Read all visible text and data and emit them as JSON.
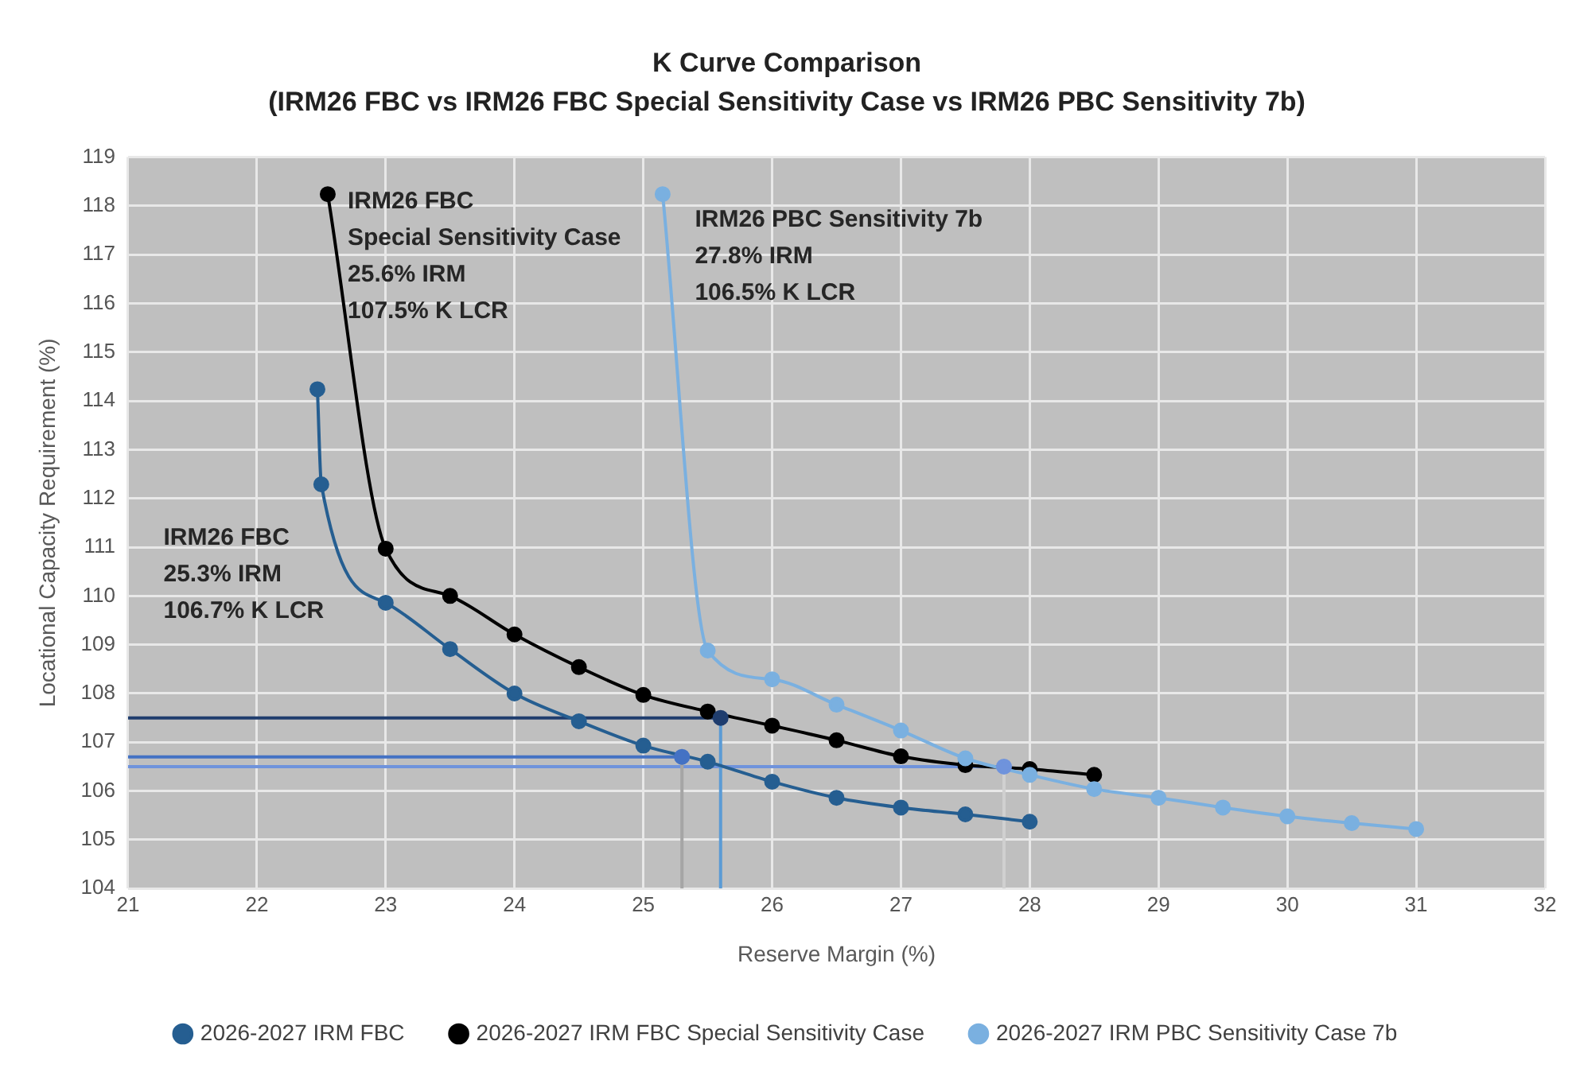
{
  "chart_data": {
    "type": "line",
    "title": "K Curve Comparison",
    "subtitle": "(IRM26 FBC vs IRM26 FBC Special Sensitivity Case vs IRM26 PBC Sensitivity 7b)",
    "xlabel": "Reserve Margin (%)",
    "ylabel": "Locational Capacity Requirement (%)",
    "xlim": [
      21,
      32
    ],
    "xticks": [
      21,
      22,
      23,
      24,
      25,
      26,
      27,
      28,
      29,
      30,
      31,
      32
    ],
    "ylim": [
      104,
      119
    ],
    "yticks": [
      104,
      105,
      106,
      107,
      108,
      109,
      110,
      111,
      112,
      113,
      114,
      115,
      116,
      117,
      118,
      119
    ],
    "grid": true,
    "legend": "bottom",
    "marker": "circle",
    "line_style": "solid",
    "series": [
      {
        "marker": "none",
        "color": "#1f3d6e",
        "x": [
          21,
          25.6
        ],
        "values": [
          107.5,
          107.5
        ]
      },
      {
        "marker": "none",
        "color": "#4472c4",
        "x": [
          21,
          25.3
        ],
        "values": [
          106.7,
          106.7
        ]
      },
      {
        "marker": "none",
        "color": "#6f93dc",
        "x": [
          21,
          27.8
        ],
        "values": [
          106.5,
          106.5
        ]
      },
      {
        "marker": "none",
        "color": "#5b9bd5",
        "x": [
          25.6,
          25.6
        ],
        "values": [
          104,
          107.5
        ]
      },
      {
        "marker": "none",
        "color": "#a5a5a5",
        "x": [
          25.3,
          25.3
        ],
        "values": [
          104,
          106.7
        ]
      },
      {
        "marker": "none",
        "color": "#d0d0d0",
        "x": [
          27.8,
          27.8
        ],
        "values": [
          104,
          106.5
        ]
      },
      {
        "name": "2026-2027 IRM FBC",
        "color": "#255e91",
        "x": [
          22.47,
          22.5,
          23,
          23.5,
          24,
          24.5,
          25,
          25.5,
          26,
          26.5,
          27,
          27.5,
          28
        ],
        "values": [
          114.24,
          112.29,
          109.86,
          108.91,
          108.0,
          107.43,
          106.93,
          106.6,
          106.19,
          105.86,
          105.66,
          105.52,
          105.37
        ]
      },
      {
        "name": "2026-2027 IRM FBC Special Sensitivity Case",
        "color": "#000000",
        "x": [
          22.55,
          23,
          23.5,
          24,
          24.5,
          25,
          25.5,
          26,
          26.5,
          27,
          27.5,
          28,
          28.5
        ],
        "values": [
          118.24,
          110.97,
          110.0,
          109.21,
          108.54,
          107.97,
          107.63,
          107.34,
          107.04,
          106.71,
          106.53,
          106.45,
          106.33
        ]
      },
      {
        "name": "2026-2027 IRM PBC Sensitivity Case 7b",
        "color": "#7ab0e0",
        "x": [
          25.15,
          25.5,
          26,
          26.5,
          27,
          27.5,
          28,
          28.5,
          29,
          29.5,
          30,
          30.5,
          31
        ],
        "values": [
          118.24,
          108.88,
          108.29,
          107.77,
          107.24,
          106.67,
          106.33,
          106.04,
          105.86,
          105.66,
          105.48,
          105.34,
          105.22
        ]
      },
      {
        "type": "scatter",
        "marker": "circle",
        "x": [
          25.6,
          25.3,
          27.8
        ],
        "values": [
          107.5,
          106.7,
          106.5
        ],
        "colors": [
          "#1f3d6e",
          "#4472c4",
          "#6f93dc"
        ]
      }
    ],
    "annotations": [
      "IRM26 FBC\nSpecial Sensitivity Case\n25.6% IRM\n107.5% K LCR",
      "IRM26 PBC Sensitivity 7b\n27.8% IRM\n106.5% K LCR",
      "IRM26 FBC\n25.3% IRM\n106.7% K LCR"
    ]
  }
}
